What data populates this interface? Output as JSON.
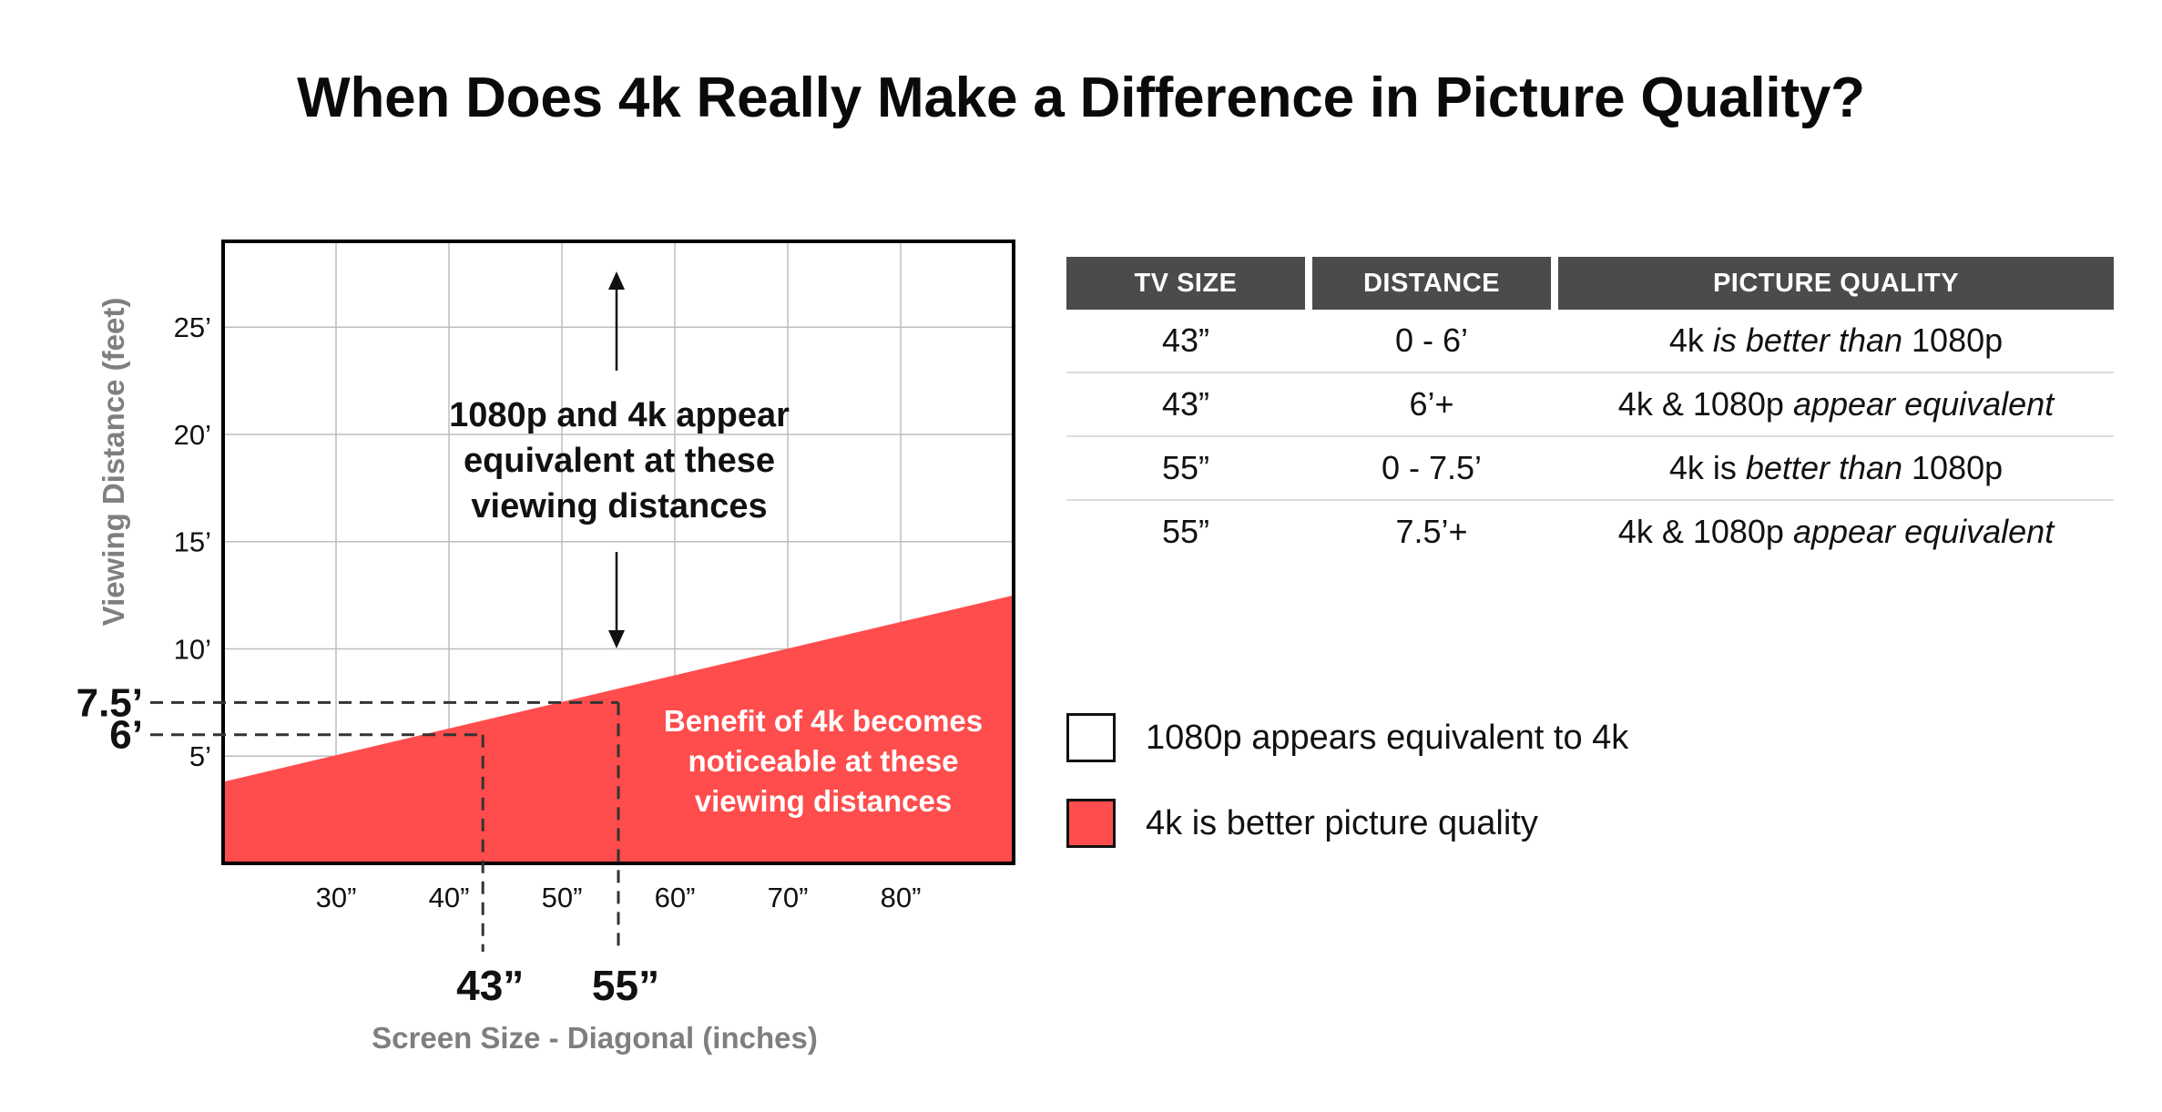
{
  "title": "When Does 4k Really Make a Difference in Picture Quality?",
  "colors": {
    "fill_4k": "#ff4d4d",
    "axis": "#000000",
    "grid": "#bdbdbd",
    "axis_title": "#7f7f7f",
    "header_bg": "#4b4b4b"
  },
  "chart_data": {
    "type": "area",
    "title": "When Does 4k Really Make a Difference in Picture Quality?",
    "xlabel": "Screen Size - Diagonal (inches)",
    "ylabel": "Viewing Distance (feet)",
    "xlim": [
      20,
      90
    ],
    "ylim": [
      0,
      29
    ],
    "x_ticks": [
      30,
      40,
      50,
      60,
      70,
      80
    ],
    "x_tick_labels": [
      "30”",
      "40”",
      "50”",
      "60”",
      "70”",
      "80”"
    ],
    "y_ticks": [
      5,
      10,
      15,
      20,
      25
    ],
    "y_tick_labels": [
      "5’",
      "10’",
      "15’",
      "20’",
      "25’"
    ],
    "grid": true,
    "series": [
      {
        "name": "4k is better picture quality",
        "x": [
          20,
          90
        ],
        "y": [
          3.8,
          12.5
        ]
      }
    ],
    "markers": [
      {
        "x": 43,
        "y": 6,
        "x_label": "43”",
        "y_label": "6’"
      },
      {
        "x": 55,
        "y": 7.5,
        "x_label": "55”",
        "y_label": "7.5’"
      }
    ],
    "annotations": {
      "upper": [
        "1080p and 4k appear",
        "equivalent at these",
        "viewing distances"
      ],
      "lower": [
        "Benefit of 4k becomes",
        "noticeable at these",
        "viewing distances"
      ]
    }
  },
  "table": {
    "headers": [
      "TV SIZE",
      "DISTANCE",
      "PICTURE QUALITY"
    ],
    "rows": [
      {
        "size": "43”",
        "distance": "0 - 6’",
        "q_a": "4k",
        "q_b": "is better than",
        "q_c": "1080p"
      },
      {
        "size": "43”",
        "distance": "6’+",
        "q_a": "4k & 1080p",
        "q_b": "appear equivalent",
        "q_c": ""
      },
      {
        "size": "55”",
        "distance": "0 - 7.5’",
        "q_a": "4k is",
        "q_b": "better than",
        "q_c": "1080p"
      },
      {
        "size": "55”",
        "distance": "7.5’+",
        "q_a": "4k & 1080p",
        "q_b": "appear equivalent",
        "q_c": ""
      }
    ]
  },
  "legend": {
    "items": [
      {
        "label": "1080p appears equivalent to 4k",
        "color": "#ffffff"
      },
      {
        "label": "4k is better picture quality",
        "color": "#ff4d4d"
      }
    ]
  }
}
